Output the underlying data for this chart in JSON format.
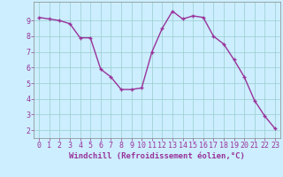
{
  "x": [
    0,
    1,
    2,
    3,
    4,
    5,
    6,
    7,
    8,
    9,
    10,
    11,
    12,
    13,
    14,
    15,
    16,
    17,
    18,
    19,
    20,
    21,
    22,
    23
  ],
  "y": [
    9.2,
    9.1,
    9.0,
    8.8,
    7.9,
    7.9,
    5.9,
    5.4,
    4.6,
    4.6,
    4.7,
    7.0,
    8.5,
    9.6,
    9.1,
    9.3,
    9.2,
    8.0,
    7.5,
    6.5,
    5.4,
    3.9,
    2.9,
    2.1
  ],
  "line_color": "#993399",
  "marker_color": "#993399",
  "bg_color": "#cceeff",
  "grid_color": "#99cccc",
  "xlabel": "Windchill (Refroidissement éolien,°C)",
  "xlim_min": -0.5,
  "xlim_max": 23.5,
  "ylim_min": 1.5,
  "ylim_max": 10.2,
  "xticks": [
    0,
    1,
    2,
    3,
    4,
    5,
    6,
    7,
    8,
    9,
    10,
    11,
    12,
    13,
    14,
    15,
    16,
    17,
    18,
    19,
    20,
    21,
    22,
    23
  ],
  "yticks": [
    2,
    3,
    4,
    5,
    6,
    7,
    8,
    9
  ],
  "xlabel_fontsize": 6.5,
  "tick_fontsize": 6.0,
  "line_width": 1.0,
  "marker_size": 2.5
}
